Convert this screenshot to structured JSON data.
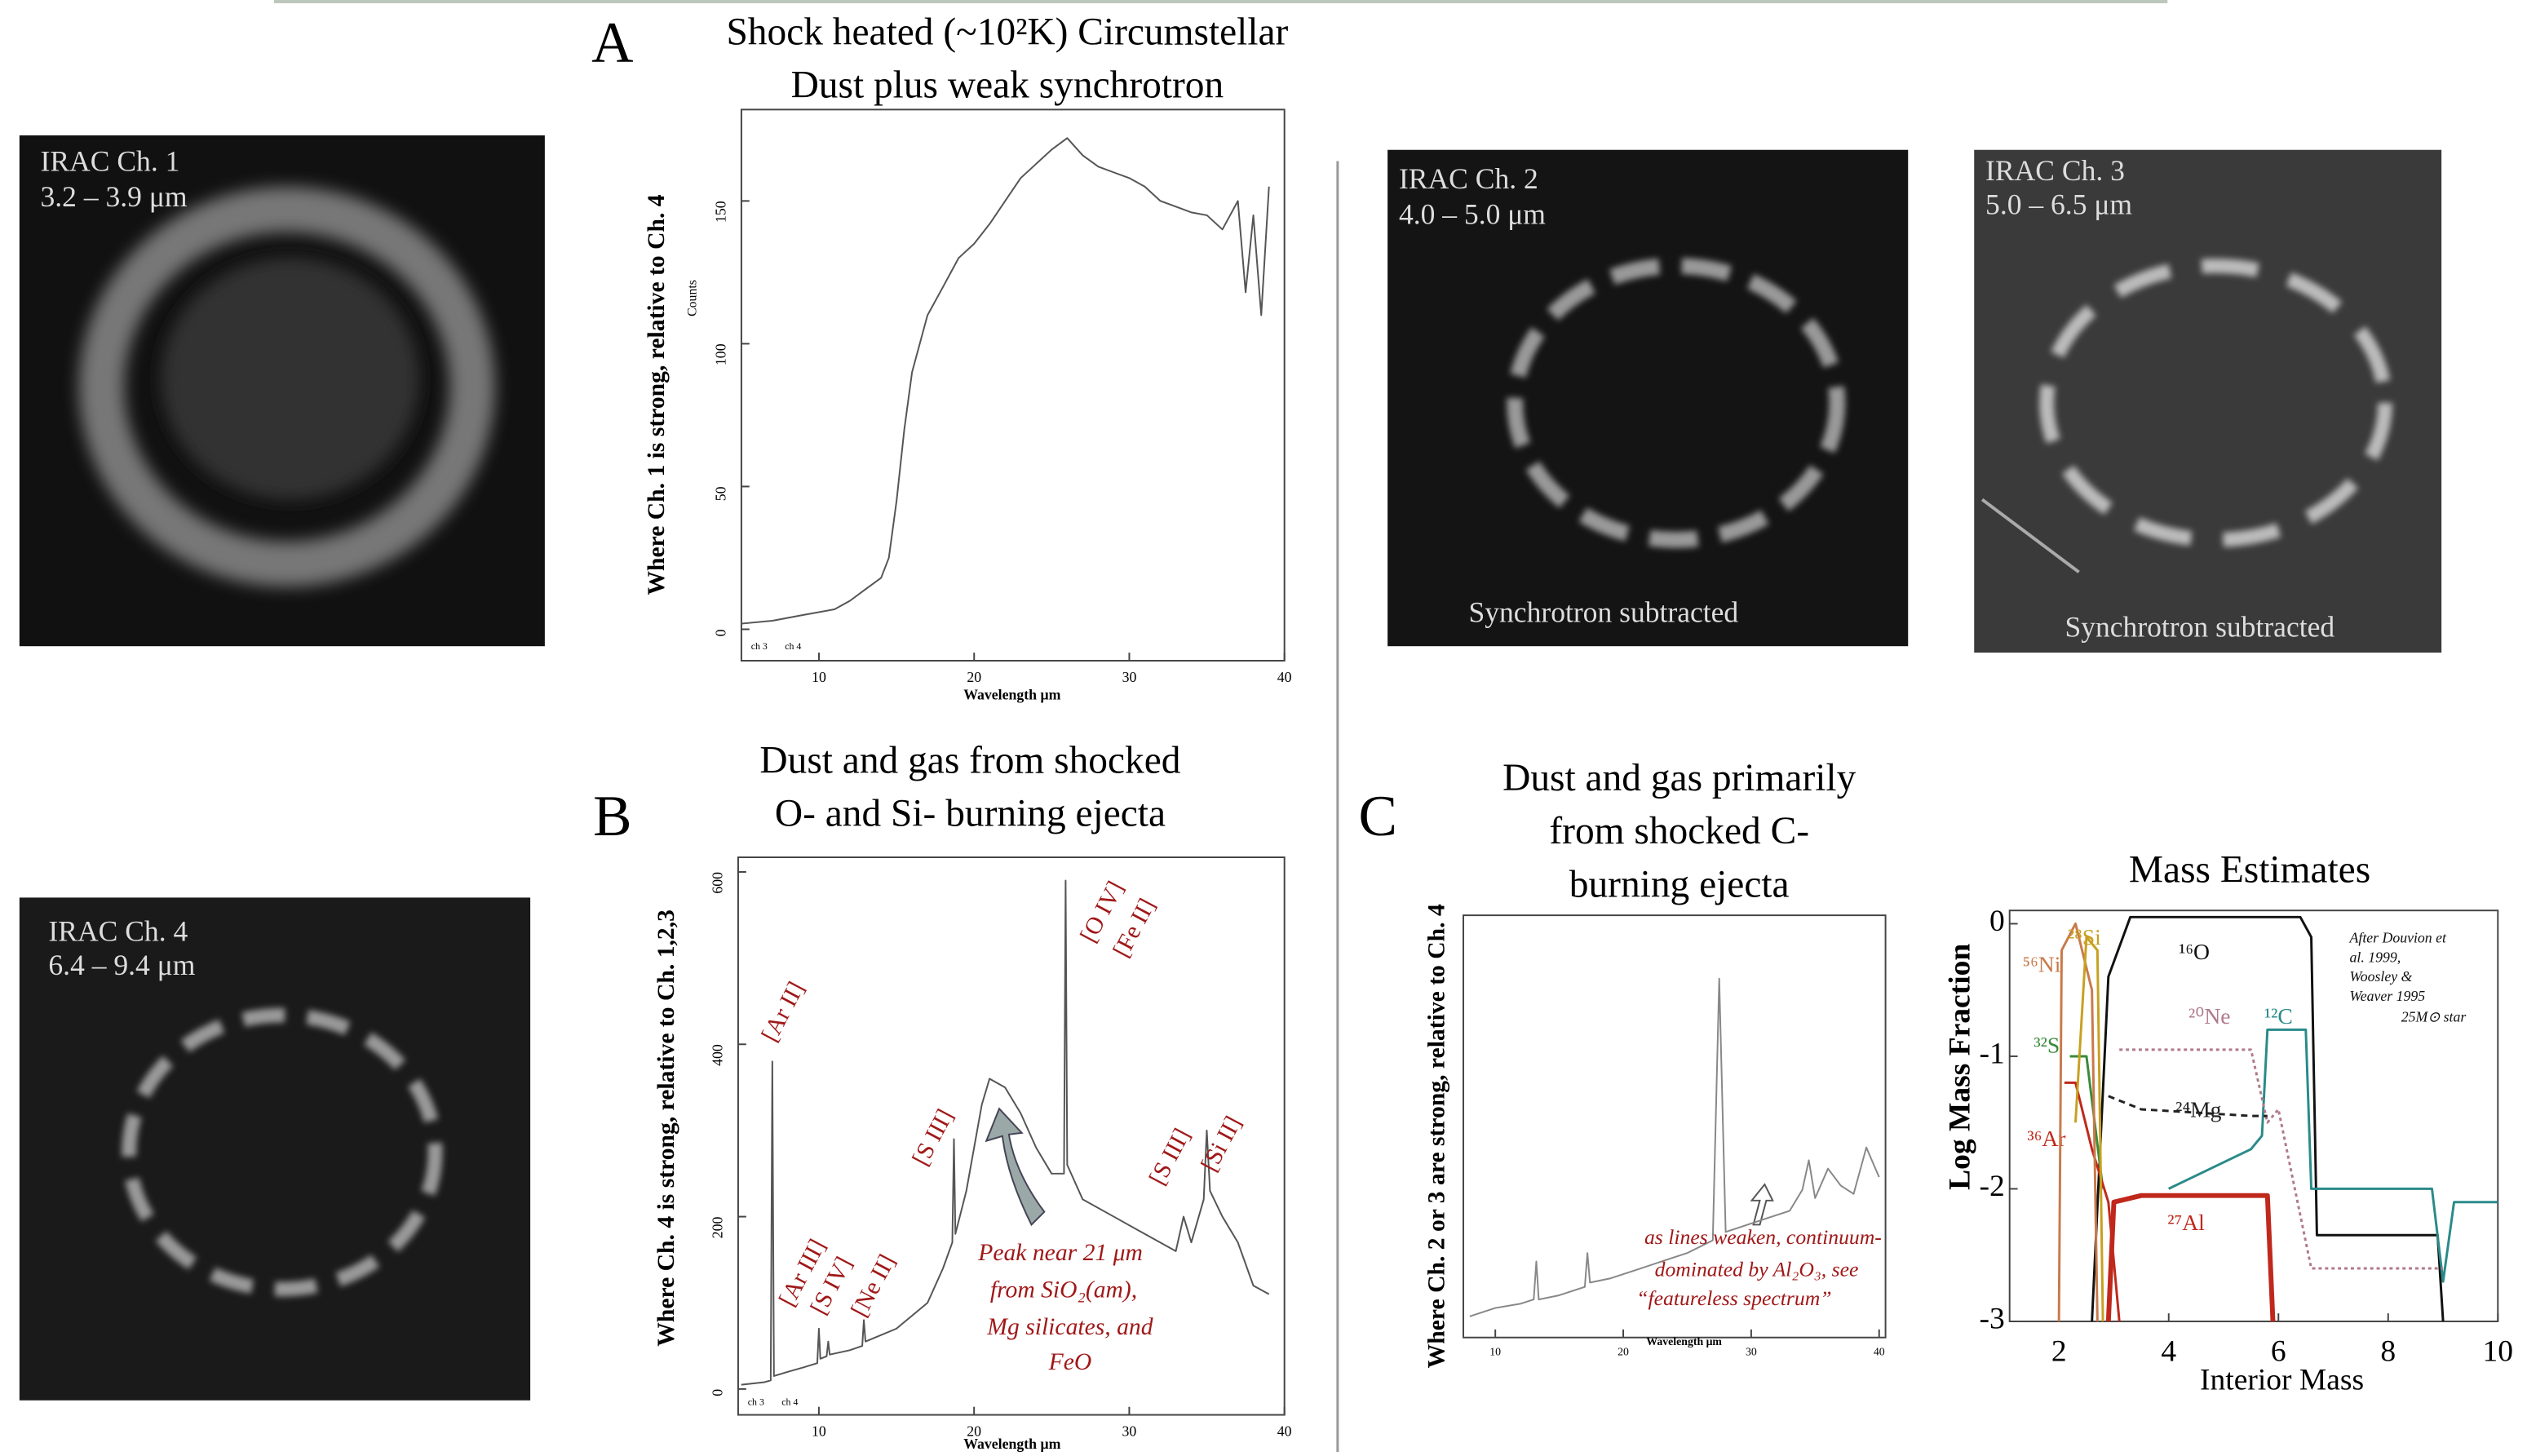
{
  "figure": {
    "images": [
      {
        "label": "IRAC Ch. 1",
        "range": "3.2 – 3.9 μm"
      },
      {
        "label": "IRAC Ch. 2",
        "range": "4.0 – 5.0 μm",
        "note": "Synchrotron subtracted"
      },
      {
        "label": "IRAC Ch. 3",
        "range": "5.0 – 6.5 μm",
        "note": "Synchrotron subtracted"
      },
      {
        "label": "IRAC Ch. 4",
        "range": "6.4 – 9.4 μm"
      }
    ]
  },
  "chart_data": [
    {
      "type": "line",
      "panel": "A",
      "title_lines": [
        "Shock heated (~10²K) Circumstellar",
        "Dust plus weak synchrotron"
      ],
      "ylabel": "Where Ch. 1 is strong, relative to Ch. 4",
      "ylabel_inner": "Counts",
      "xlabel": "Wavelength μm",
      "band_labels": [
        "ch 3",
        "ch 4"
      ],
      "x": [
        5,
        7,
        9,
        11,
        12,
        13,
        14,
        14.5,
        15,
        15.5,
        16,
        17,
        18,
        18.5,
        19,
        20,
        21,
        22,
        23,
        24,
        25,
        26,
        27,
        28,
        29,
        30,
        31,
        32,
        33,
        34,
        35,
        36,
        37,
        37.5,
        38,
        38.5,
        39
      ],
      "values": [
        2,
        3,
        5,
        7,
        10,
        14,
        18,
        25,
        45,
        70,
        90,
        110,
        120,
        125,
        130,
        135,
        142,
        150,
        158,
        163,
        168,
        172,
        166,
        162,
        160,
        158,
        155,
        150,
        148,
        146,
        145,
        140,
        150,
        118,
        145,
        110,
        155
      ],
      "color": "#555555",
      "xlim": [
        5,
        40
      ],
      "xticks": [
        10,
        20,
        30,
        40
      ],
      "ylim": [
        -11,
        182
      ],
      "yticks": [
        0,
        50,
        100,
        150
      ]
    },
    {
      "type": "line",
      "panel": "B",
      "title_lines": [
        "Dust and gas from shocked",
        "O- and Si- burning ejecta"
      ],
      "ylabel": "Where Ch. 4 is strong, relative to Ch. 1,2,3",
      "xlabel": "Wavelength μm",
      "band_labels": [
        "ch 3",
        "ch 4"
      ],
      "annotations": [
        "[Ar II]",
        "[Ar III]",
        "[S IV]",
        "[Ne II]",
        "[S III]",
        "[O IV]",
        "[Fe II]",
        "[S III]",
        "[Si II]"
      ],
      "note_lines": [
        "Peak near 21 μm",
        "from SiO₂(am),",
        "Mg silicates, and",
        "FeO"
      ],
      "x": [
        5,
        6.5,
        6.9,
        7,
        7.1,
        8,
        9,
        9.9,
        10,
        10.1,
        10.5,
        10.6,
        10.7,
        12,
        12.8,
        12.9,
        13,
        15,
        17,
        18,
        18.6,
        18.7,
        18.8,
        19.5,
        20.5,
        21,
        22,
        23,
        24,
        25,
        25.8,
        25.9,
        26,
        27,
        29,
        31,
        33,
        33.5,
        34,
        34.8,
        35,
        35.2,
        36,
        37,
        38,
        39
      ],
      "values": [
        5,
        8,
        10,
        380,
        15,
        20,
        25,
        30,
        70,
        35,
        38,
        55,
        40,
        45,
        50,
        80,
        55,
        70,
        100,
        140,
        170,
        290,
        180,
        230,
        330,
        360,
        350,
        320,
        280,
        250,
        250,
        590,
        260,
        220,
        200,
        180,
        160,
        200,
        170,
        220,
        300,
        230,
        200,
        170,
        120,
        110
      ],
      "color": "#555555",
      "xlim": [
        4.8,
        40
      ],
      "xticks": [
        10,
        20,
        30,
        40
      ],
      "ylim": [
        -30,
        617
      ],
      "yticks": [
        0,
        200,
        400,
        600
      ]
    },
    {
      "type": "line",
      "panel": "C",
      "title_lines": [
        "Dust and gas primarily",
        "from  shocked C-",
        "burning ejecta"
      ],
      "ylabel": "Where Ch. 2 or 3 are strong, relative to Ch. 4",
      "xlabel": "Wavelength μm",
      "note_lines": [
        "as lines weaken, continuum-",
        "dominated by  Al₂O₃, see",
        "“featureless spectrum”"
      ],
      "x": [
        8,
        10,
        12,
        13,
        13.2,
        13.4,
        15,
        17,
        17.2,
        17.4,
        19,
        21,
        23,
        25,
        27,
        27.5,
        28,
        29,
        31,
        33,
        34,
        34.5,
        35,
        36,
        37,
        38,
        39,
        40
      ],
      "values": [
        5,
        7,
        8,
        9,
        18,
        9,
        10,
        12,
        20,
        13,
        14,
        16,
        18,
        20,
        23,
        85,
        25,
        26,
        28,
        30,
        35,
        42,
        33,
        40,
        36,
        34,
        45,
        38
      ],
      "color": "#888888",
      "xlim": [
        7.5,
        40.5
      ],
      "xticks": [
        10,
        20,
        30,
        40
      ],
      "ylim": [
        0,
        100
      ]
    },
    {
      "type": "line",
      "title": "Mass Estimates",
      "ylabel": "Log Mass Fraction",
      "xlabel": "Interior Mass",
      "note_lines": [
        "After Douvion et",
        "al. 1999,",
        "Woosley &",
        "Weaver 1995",
        "25M⊙ star"
      ],
      "xlim": [
        1.1,
        10
      ],
      "xticks": [
        2,
        4,
        6,
        8,
        10
      ],
      "ylim": [
        -3,
        0.1
      ],
      "yticks": [
        -3,
        -2,
        -1,
        0
      ],
      "series": [
        {
          "name": "¹⁶O",
          "color": "#111111",
          "x": [
            2.6,
            2.9,
            3.3,
            6.4,
            6.6,
            6.7,
            8.9,
            9.0
          ],
          "values": [
            -3,
            -0.4,
            0.05,
            0.05,
            -0.1,
            -2.35,
            -2.35,
            -3
          ]
        },
        {
          "name": "¹²C",
          "color": "#2a8a8a",
          "x": [
            4,
            5.5,
            5.7,
            5.8,
            6.5,
            6.6,
            8.8,
            9.0,
            9.2,
            10
          ],
          "values": [
            -2,
            -1.7,
            -1.6,
            -0.8,
            -0.8,
            -2.0,
            -2.0,
            -2.7,
            -2.1,
            -2.1
          ]
        },
        {
          "name": "²⁰Ne",
          "color": "#b07a8a",
          "x": [
            3.1,
            5.5,
            5.8,
            6.0,
            6.6,
            9.0
          ],
          "values": [
            -0.95,
            -0.95,
            -1.5,
            -1.4,
            -2.6,
            -2.6
          ]
        },
        {
          "name": "²⁴Mg",
          "color": "#222222",
          "x": [
            2.9,
            3.5,
            5.5,
            5.8
          ],
          "values": [
            -1.3,
            -1.4,
            -1.45,
            -1.45
          ]
        },
        {
          "name": "²⁷Al",
          "color": "#c0281c",
          "x": [
            2.9,
            3.0,
            3.5,
            5.8,
            5.9
          ],
          "values": [
            -3,
            -2.1,
            -2.05,
            -2.05,
            -3
          ]
        },
        {
          "name": "³²S",
          "color": "#3a8a3a",
          "x": [
            2.2,
            2.5,
            2.8
          ],
          "values": [
            -1,
            -1,
            -2
          ]
        },
        {
          "name": "³⁶Ar",
          "color": "#c0281c",
          "x": [
            2.1,
            2.3,
            2.6,
            2.9,
            3.1
          ],
          "values": [
            -1.2,
            -1.2,
            -1.7,
            -2.1,
            -3
          ]
        },
        {
          "name": "⁵⁶Ni",
          "color": "#c87a4a",
          "x": [
            2.0,
            2.05,
            2.3,
            2.6,
            2.7
          ],
          "values": [
            -3,
            -0.2,
            0,
            -0.5,
            -3
          ]
        },
        {
          "name": "²⁸Si",
          "color": "#c8a020",
          "x": [
            2.3,
            2.5,
            2.7,
            2.8
          ],
          "values": [
            -1.5,
            -0.1,
            -0.2,
            -3
          ]
        }
      ]
    }
  ]
}
